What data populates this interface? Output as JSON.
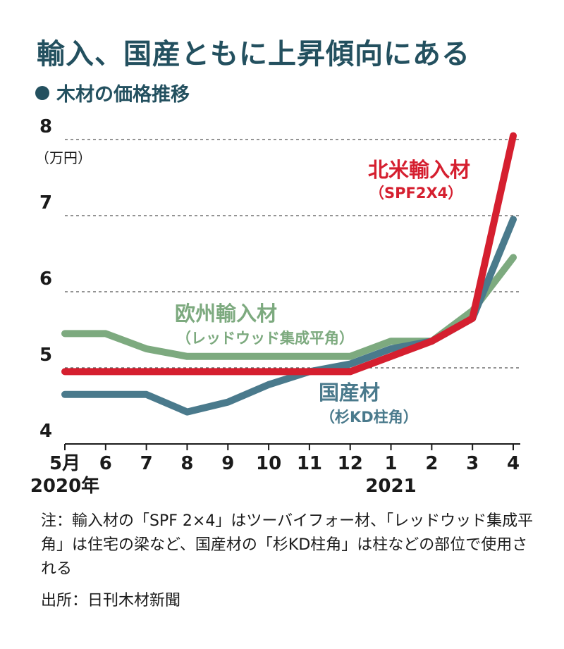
{
  "header": {
    "title": "輸入、国産ともに上昇傾向にある",
    "subtitle": "木材の価格推移"
  },
  "chart_data": {
    "type": "line",
    "title": "木材の価格推移",
    "unit_label": "（万円）",
    "categories": [
      "5月",
      "6",
      "7",
      "8",
      "9",
      "10",
      "11",
      "12",
      "1",
      "2",
      "3",
      "4"
    ],
    "year_labels": [
      {
        "text": "2020年",
        "at_index": 0
      },
      {
        "text": "2021",
        "at_index": 8
      }
    ],
    "ylim": [
      4,
      8
    ],
    "yticks": [
      4,
      5,
      6,
      7,
      8
    ],
    "grid": "dashed",
    "series": [
      {
        "name": "欧州輸入材",
        "sub": "（レッドウッド集成平角）",
        "color": "#7daa7f",
        "values": [
          5.45,
          5.45,
          5.25,
          5.15,
          5.15,
          5.15,
          5.15,
          5.15,
          5.35,
          5.35,
          5.75,
          6.45
        ]
      },
      {
        "name": "国産材",
        "sub": "（杉KD柱角）",
        "color": "#4a7a8c",
        "values": [
          4.65,
          4.65,
          4.65,
          4.42,
          4.55,
          4.78,
          4.95,
          5.05,
          5.25,
          5.35,
          5.65,
          6.95
        ]
      },
      {
        "name": "北米輸入材",
        "sub": "（SPF2X4）",
        "color": "#d51f2f",
        "values": [
          4.95,
          4.95,
          4.95,
          4.95,
          4.95,
          4.95,
          4.95,
          4.95,
          5.15,
          5.35,
          5.65,
          8.05
        ]
      }
    ]
  },
  "footer": {
    "note_label": "注：",
    "note_text": "輸入材の「SPF 2×4」はツーバイフォー材、「レッドウッド集成平角」は住宅の梁など、国産材の「杉KD柱角」は柱などの部位で使用される",
    "source": "出所：日刊木材新聞"
  }
}
